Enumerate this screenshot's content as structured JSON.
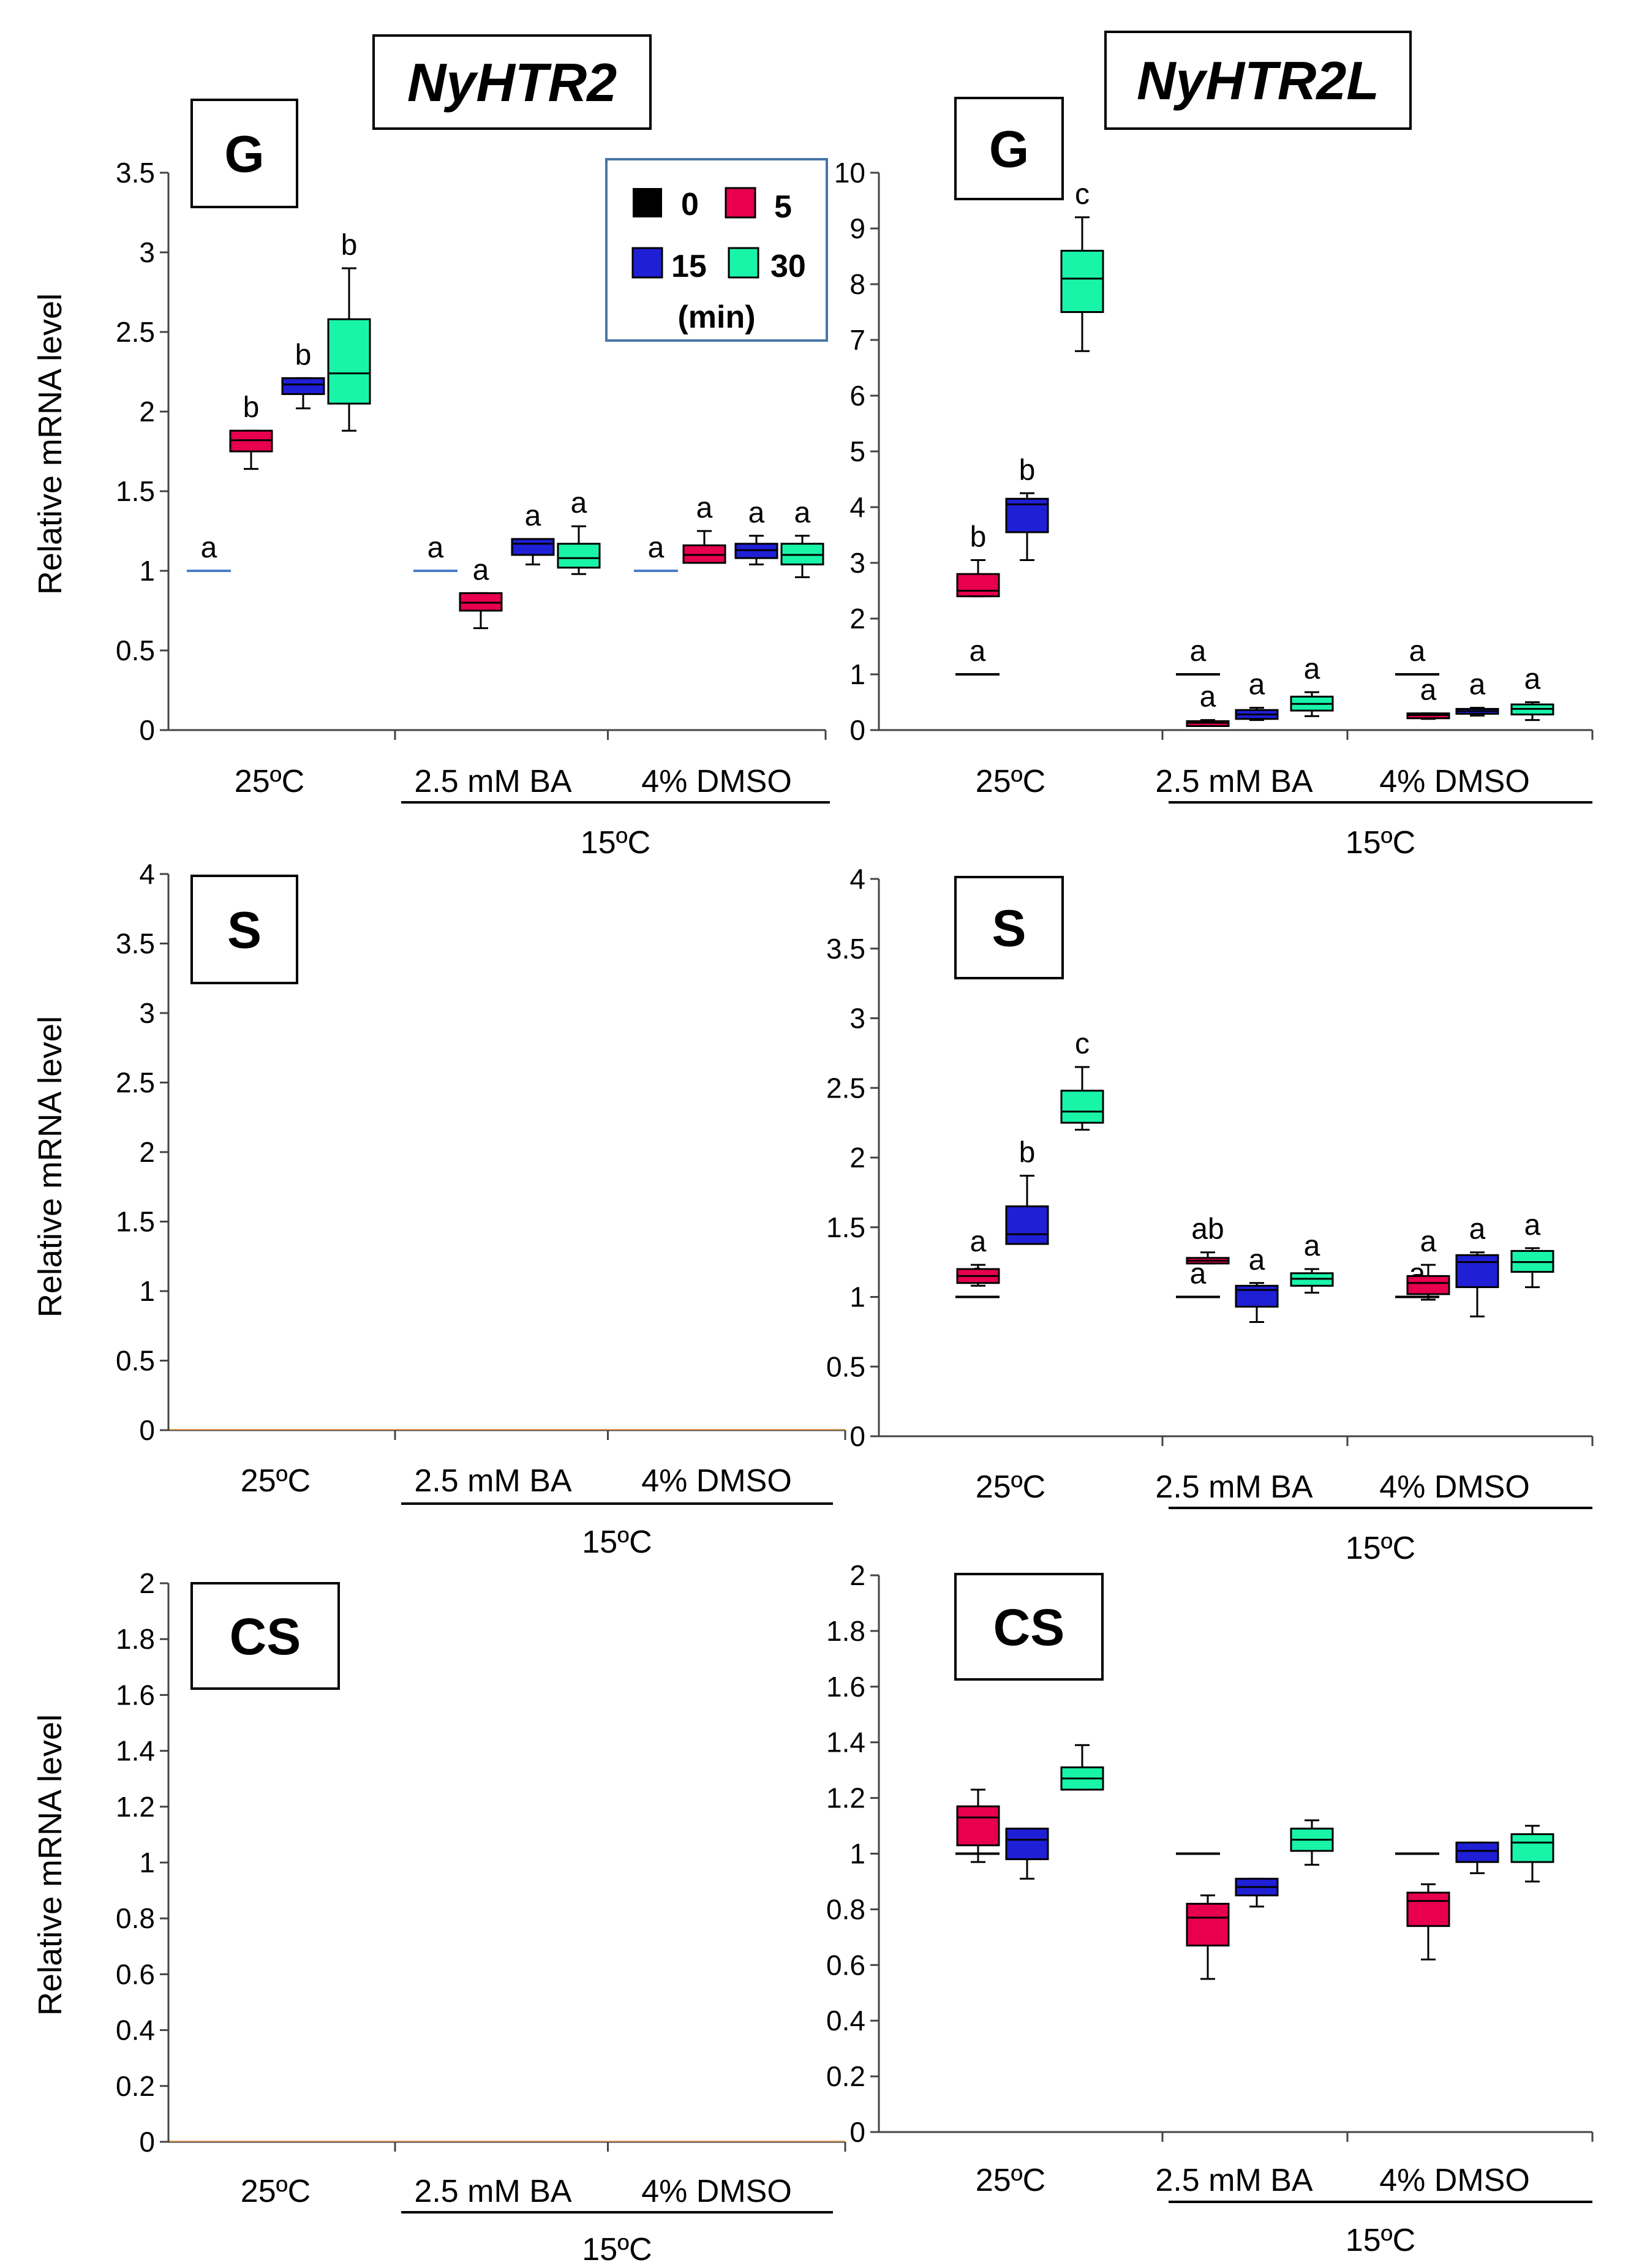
{
  "column_titles": [
    "NyHTR2",
    "NyHTR2L"
  ],
  "legend": {
    "entries": [
      {
        "label": "0",
        "color": "#000000"
      },
      {
        "label": "5",
        "color": "#e8004f"
      },
      {
        "label": "15",
        "color": "#1f1fd6"
      },
      {
        "label": "30",
        "color": "#19f5a8"
      }
    ],
    "unit": "(min)"
  },
  "colors": {
    "t0": "#000000",
    "t5": "#e8004f",
    "t15": "#1f1fd6",
    "t30": "#19f5a8",
    "baseline_blue": "#4a7ec8",
    "legend_border": "#4a76a8"
  },
  "chart_data": [
    {
      "id": "htr2-G",
      "type": "box",
      "tissue": "G",
      "ylabel": "Relative mRNA level",
      "ylim": [
        0,
        3.5
      ],
      "yticks": [
        "0",
        "0.5",
        "1",
        "1.5",
        "2",
        "2.5",
        "3",
        "3.5"
      ],
      "groups": [
        "25ºC",
        "2.5 mM BA",
        "4% DMSO"
      ],
      "bracket_label": "15ºC",
      "boxes": [
        {
          "group": 0,
          "time": "0",
          "baseline": 1,
          "sig": "a"
        },
        {
          "group": 0,
          "time": "5",
          "min": 1.64,
          "q1": 1.75,
          "median": 1.82,
          "q3": 1.88,
          "max": 1.88,
          "sig": "b"
        },
        {
          "group": 0,
          "time": "15",
          "min": 2.02,
          "q1": 2.11,
          "median": 2.17,
          "q3": 2.21,
          "max": 2.21,
          "sig": "b"
        },
        {
          "group": 0,
          "time": "30",
          "min": 1.88,
          "q1": 2.05,
          "median": 2.24,
          "q3": 2.58,
          "max": 2.9,
          "sig": "b"
        },
        {
          "group": 1,
          "time": "0",
          "baseline": 1,
          "sig": "a"
        },
        {
          "group": 1,
          "time": "5",
          "min": 0.64,
          "q1": 0.75,
          "median": 0.8,
          "q3": 0.86,
          "max": 0.86,
          "sig": "a"
        },
        {
          "group": 1,
          "time": "15",
          "min": 1.04,
          "q1": 1.1,
          "median": 1.17,
          "q3": 1.2,
          "max": 1.2,
          "sig": "a"
        },
        {
          "group": 1,
          "time": "30",
          "min": 0.98,
          "q1": 1.02,
          "median": 1.08,
          "q3": 1.17,
          "max": 1.28,
          "sig": "a"
        },
        {
          "group": 2,
          "time": "0",
          "baseline": 1,
          "sig": "a"
        },
        {
          "group": 2,
          "time": "5",
          "min": 1.05,
          "q1": 1.05,
          "median": 1.1,
          "q3": 1.16,
          "max": 1.25,
          "sig": "a"
        },
        {
          "group": 2,
          "time": "15",
          "min": 1.04,
          "q1": 1.08,
          "median": 1.13,
          "q3": 1.17,
          "max": 1.22,
          "sig": "a"
        },
        {
          "group": 2,
          "time": "30",
          "min": 0.96,
          "q1": 1.04,
          "median": 1.1,
          "q3": 1.17,
          "max": 1.22,
          "sig": "a"
        }
      ]
    },
    {
      "id": "htr2L-G",
      "type": "box",
      "tissue": "G",
      "ylabel": "",
      "ylim": [
        0,
        10
      ],
      "yticks": [
        "0",
        "1",
        "2",
        "3",
        "4",
        "5",
        "6",
        "7",
        "8",
        "9",
        "10"
      ],
      "groups": [
        "25ºC",
        "2.5 mM BA",
        "4% DMSO"
      ],
      "bracket_label": "15ºC",
      "boxes": [
        {
          "group": 0,
          "time": "0",
          "baseline": 1,
          "sig": "a"
        },
        {
          "group": 0,
          "time": "5",
          "min": 2.4,
          "q1": 2.4,
          "median": 2.5,
          "q3": 2.8,
          "max": 3.05,
          "sig": "b"
        },
        {
          "group": 0,
          "time": "15",
          "min": 3.05,
          "q1": 3.55,
          "median": 4.05,
          "q3": 4.15,
          "max": 4.25,
          "sig": "b"
        },
        {
          "group": 0,
          "time": "30",
          "min": 6.8,
          "q1": 7.5,
          "median": 8.1,
          "q3": 8.6,
          "max": 9.2,
          "sig": "c"
        },
        {
          "group": 1,
          "time": "0",
          "baseline": 1,
          "sig": "a"
        },
        {
          "group": 1,
          "time": "5",
          "min": 0.1,
          "q1": 0.1,
          "median": 0.13,
          "q3": 0.16,
          "max": 0.18,
          "sig": "a"
        },
        {
          "group": 1,
          "time": "15",
          "min": 0.18,
          "q1": 0.2,
          "median": 0.28,
          "q3": 0.36,
          "max": 0.4,
          "sig": "a"
        },
        {
          "group": 1,
          "time": "30",
          "min": 0.25,
          "q1": 0.35,
          "median": 0.47,
          "q3": 0.6,
          "max": 0.68,
          "sig": "a"
        },
        {
          "group": 2,
          "time": "0",
          "baseline": 1,
          "sig": "a"
        },
        {
          "group": 2,
          "time": "5",
          "min": 0.2,
          "q1": 0.22,
          "median": 0.27,
          "q3": 0.3,
          "max": 0.3,
          "sig": "a"
        },
        {
          "group": 2,
          "time": "15",
          "min": 0.26,
          "q1": 0.3,
          "median": 0.34,
          "q3": 0.38,
          "max": 0.4,
          "sig": "a"
        },
        {
          "group": 2,
          "time": "30",
          "min": 0.18,
          "q1": 0.28,
          "median": 0.38,
          "q3": 0.46,
          "max": 0.5,
          "sig": "a"
        }
      ]
    },
    {
      "id": "htr2-S",
      "type": "box",
      "tissue": "S",
      "ylabel": "Relative mRNA level",
      "ylim": [
        0,
        4
      ],
      "yticks": [
        "0",
        "0.5",
        "1",
        "1.5",
        "2",
        "2.5",
        "3",
        "3.5",
        "4"
      ],
      "groups": [
        "25ºC",
        "2.5 mM BA",
        "4% DMSO"
      ],
      "bracket_label": "15ºC",
      "boxes": []
    },
    {
      "id": "htr2L-S",
      "type": "box",
      "tissue": "S",
      "ylabel": "",
      "ylim": [
        0,
        4
      ],
      "yticks": [
        "0",
        "0.5",
        "1",
        "1.5",
        "2",
        "2.5",
        "3",
        "3.5",
        "4"
      ],
      "groups": [
        "25ºC",
        "2.5 mM BA",
        "4% DMSO"
      ],
      "bracket_label": "15ºC",
      "boxes": [
        {
          "group": 0,
          "time": "0",
          "baseline": 1,
          "sig": "a"
        },
        {
          "group": 0,
          "time": "5",
          "min": 1.08,
          "q1": 1.1,
          "median": 1.15,
          "q3": 1.2,
          "max": 1.23,
          "sig": "a"
        },
        {
          "group": 0,
          "time": "15",
          "min": 1.38,
          "q1": 1.38,
          "median": 1.45,
          "q3": 1.65,
          "max": 1.87,
          "sig": "b"
        },
        {
          "group": 0,
          "time": "30",
          "min": 2.2,
          "q1": 2.25,
          "median": 2.33,
          "q3": 2.48,
          "max": 2.65,
          "sig": "c"
        },
        {
          "group": 1,
          "time": "0",
          "baseline": 1,
          "sig": "a"
        },
        {
          "group": 1,
          "time": "5",
          "min": 1.24,
          "q1": 1.24,
          "median": 1.26,
          "q3": 1.28,
          "max": 1.32,
          "sig": "ab"
        },
        {
          "group": 1,
          "time": "15",
          "min": 0.82,
          "q1": 0.93,
          "median": 1.05,
          "q3": 1.08,
          "max": 1.1,
          "sig": "a"
        },
        {
          "group": 1,
          "time": "30",
          "min": 1.03,
          "q1": 1.08,
          "median": 1.13,
          "q3": 1.17,
          "max": 1.2,
          "sig": "a"
        },
        {
          "group": 2,
          "time": "0",
          "baseline": 1,
          "sig": "a"
        },
        {
          "group": 2,
          "time": "5",
          "min": 0.98,
          "q1": 1.02,
          "median": 1.1,
          "q3": 1.15,
          "max": 1.23,
          "sig": "a"
        },
        {
          "group": 2,
          "time": "15",
          "min": 0.86,
          "q1": 1.07,
          "median": 1.25,
          "q3": 1.3,
          "max": 1.32,
          "sig": "a"
        },
        {
          "group": 2,
          "time": "30",
          "min": 1.07,
          "q1": 1.18,
          "median": 1.25,
          "q3": 1.33,
          "max": 1.35,
          "sig": "a"
        }
      ]
    },
    {
      "id": "htr2-CS",
      "type": "box",
      "tissue": "CS",
      "ylabel": "Relative mRNA level",
      "ylim": [
        0,
        2
      ],
      "yticks": [
        "0",
        "0.2",
        "0.4",
        "0.6",
        "0.8",
        "1",
        "1.2",
        "1.4",
        "1.6",
        "1.8",
        "2"
      ],
      "groups": [
        "25ºC",
        "2.5 mM BA",
        "4% DMSO"
      ],
      "bracket_label": "15ºC",
      "boxes": []
    },
    {
      "id": "htr2L-CS",
      "type": "box",
      "tissue": "CS",
      "ylabel": "",
      "ylim": [
        0,
        2
      ],
      "yticks": [
        "0",
        "0.2",
        "0.4",
        "0.6",
        "0.8",
        "1",
        "1.2",
        "1.4",
        "1.6",
        "1.8",
        "2"
      ],
      "groups": [
        "25ºC",
        "2.5 mM BA",
        "4% DMSO"
      ],
      "bracket_label": "15ºC",
      "boxes": [
        {
          "group": 0,
          "time": "0",
          "baseline": 1
        },
        {
          "group": 0,
          "time": "5",
          "min": 0.97,
          "q1": 1.03,
          "median": 1.13,
          "q3": 1.17,
          "max": 1.23
        },
        {
          "group": 0,
          "time": "15",
          "min": 0.91,
          "q1": 0.98,
          "median": 1.05,
          "q3": 1.09,
          "max": 1.09
        },
        {
          "group": 0,
          "time": "30",
          "min": 1.23,
          "q1": 1.23,
          "median": 1.27,
          "q3": 1.31,
          "max": 1.39
        },
        {
          "group": 1,
          "time": "0",
          "baseline": 1
        },
        {
          "group": 1,
          "time": "5",
          "min": 0.55,
          "q1": 0.67,
          "median": 0.77,
          "q3": 0.82,
          "max": 0.85
        },
        {
          "group": 1,
          "time": "15",
          "min": 0.81,
          "q1": 0.85,
          "median": 0.88,
          "q3": 0.91,
          "max": 0.91
        },
        {
          "group": 1,
          "time": "30",
          "min": 0.96,
          "q1": 1.01,
          "median": 1.05,
          "q3": 1.09,
          "max": 1.12
        },
        {
          "group": 2,
          "time": "0",
          "baseline": 1
        },
        {
          "group": 2,
          "time": "5",
          "min": 0.62,
          "q1": 0.74,
          "median": 0.83,
          "q3": 0.86,
          "max": 0.89
        },
        {
          "group": 2,
          "time": "15",
          "min": 0.93,
          "q1": 0.97,
          "median": 1.01,
          "q3": 1.04,
          "max": 1.04
        },
        {
          "group": 2,
          "time": "30",
          "min": 0.9,
          "q1": 0.97,
          "median": 1.04,
          "q3": 1.07,
          "max": 1.1
        }
      ]
    }
  ]
}
